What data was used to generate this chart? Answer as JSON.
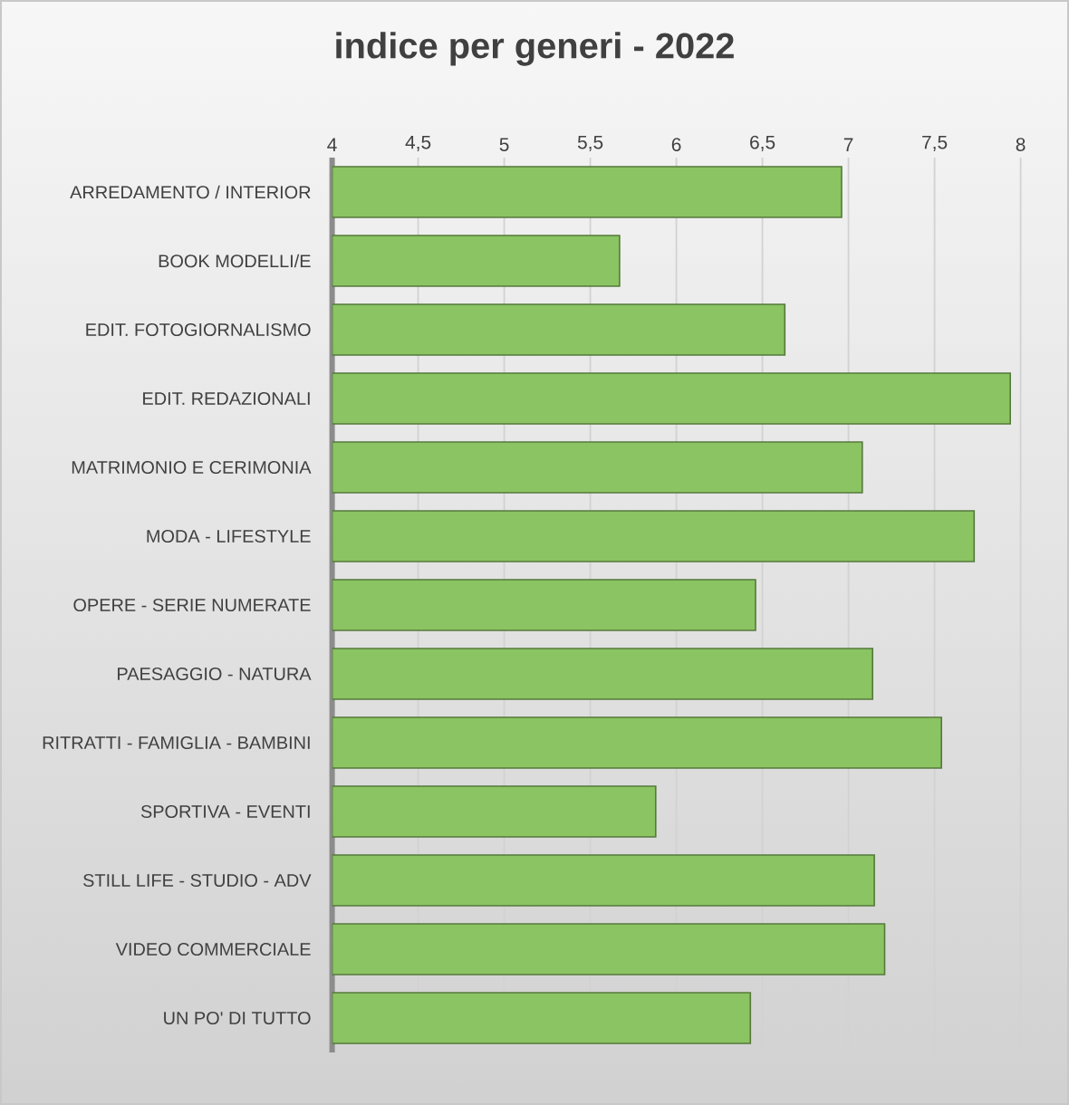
{
  "chart_data": {
    "type": "bar",
    "orientation": "horizontal",
    "title": "indice per generi - 2022",
    "categories": [
      "ARREDAMENTO / INTERIOR",
      "BOOK MODELLI/E",
      "EDIT. FOTOGIORNALISMO",
      "EDIT. REDAZIONALI",
      "MATRIMONIO E CERIMONIA",
      "MODA - LIFESTYLE",
      "OPERE - SERIE NUMERATE",
      "PAESAGGIO - NATURA",
      "RITRATTI - FAMIGLIA - BAMBINI",
      "SPORTIVA - EVENTI",
      "STILL LIFE - STUDIO - ADV",
      "VIDEO COMMERCIALE",
      "UN PO' DI TUTTO"
    ],
    "values": [
      6.96,
      5.67,
      6.63,
      7.94,
      7.08,
      7.73,
      6.46,
      7.14,
      7.54,
      5.88,
      7.15,
      7.21,
      6.43
    ],
    "color": "#8bc462",
    "xlim": [
      4,
      8
    ],
    "xticks": [
      4,
      {
        "value": 4.5,
        "label": "4,5"
      },
      5,
      {
        "value": 5.5,
        "label": "5,5"
      },
      6,
      {
        "value": 6.5,
        "label": "6,5"
      },
      7,
      {
        "value": 7.5,
        "label": "7,5"
      },
      8
    ],
    "grid": "x"
  }
}
